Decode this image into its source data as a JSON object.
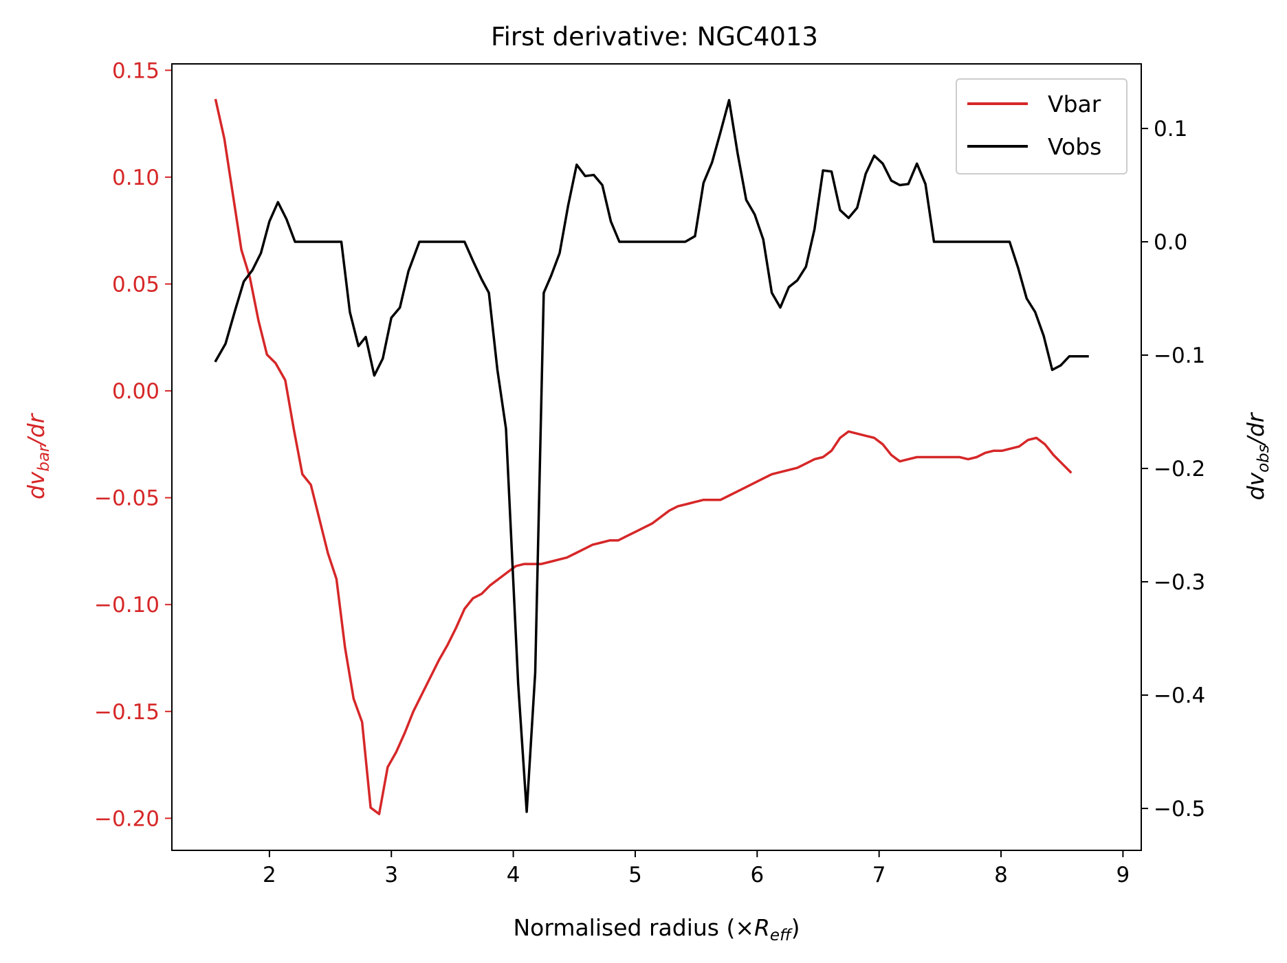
{
  "chart_data": {
    "type": "line",
    "title": "First derivative: NGC4013",
    "xlabel": "Normalised radius (×",
    "xlabel_symbol": "R",
    "xlabel_sub": "eff",
    "xlabel_close": ")",
    "ylabel_left": "dv",
    "ylabel_left_sub": "bar",
    "ylabel_left_tail": "/dr",
    "ylabel_right": "dv",
    "ylabel_right_sub": "obs",
    "ylabel_right_tail": "/dr",
    "xlim": [
      1.2,
      9.15
    ],
    "ylim_left": [
      -0.215,
      0.153
    ],
    "ylim_right": [
      -0.537,
      0.157
    ],
    "x_ticks": [
      2,
      3,
      4,
      5,
      6,
      7,
      8,
      9
    ],
    "x_tick_labels": [
      "2",
      "3",
      "4",
      "5",
      "6",
      "7",
      "8",
      "9"
    ],
    "y_left_ticks": [
      0.15,
      0.1,
      0.05,
      0.0,
      -0.05,
      -0.1,
      -0.15,
      -0.2
    ],
    "y_left_tick_labels": [
      "0.15",
      "0.10",
      "0.05",
      "0.00",
      "−0.05",
      "−0.10",
      "−0.15",
      "−0.20"
    ],
    "y_right_ticks": [
      0.1,
      0.0,
      -0.1,
      -0.2,
      -0.3,
      -0.4,
      -0.5
    ],
    "y_right_tick_labels": [
      "0.1",
      "0.0",
      "−0.1",
      "−0.2",
      "−0.3",
      "−0.4",
      "−0.5"
    ],
    "legend": {
      "placement": "top-right",
      "entries": [
        "Vbar",
        "Vobs"
      ]
    },
    "colors": {
      "vbar": "#d62728",
      "vobs": "#000000",
      "left_axis": "#d62728",
      "right_axis": "#000000"
    },
    "series": [
      {
        "name": "Vbar",
        "axis": "left",
        "color": "#d62728",
        "points": [
          [
            1.56,
            0.136
          ],
          [
            1.63,
            0.118
          ],
          [
            1.7,
            0.092
          ],
          [
            1.77,
            0.066
          ],
          [
            1.84,
            0.053
          ],
          [
            1.91,
            0.033
          ],
          [
            1.98,
            0.017
          ],
          [
            2.05,
            0.013
          ],
          [
            2.13,
            0.005
          ],
          [
            2.2,
            -0.018
          ],
          [
            2.27,
            -0.039
          ],
          [
            2.34,
            -0.044
          ],
          [
            2.41,
            -0.06
          ],
          [
            2.48,
            -0.076
          ],
          [
            2.55,
            -0.088
          ],
          [
            2.62,
            -0.12
          ],
          [
            2.69,
            -0.144
          ],
          [
            2.76,
            -0.155
          ],
          [
            2.83,
            -0.195
          ],
          [
            2.9,
            -0.198
          ],
          [
            2.97,
            -0.176
          ],
          [
            3.04,
            -0.169
          ],
          [
            3.11,
            -0.16
          ],
          [
            3.18,
            -0.15
          ],
          [
            3.25,
            -0.142
          ],
          [
            3.32,
            -0.134
          ],
          [
            3.39,
            -0.126
          ],
          [
            3.46,
            -0.119
          ],
          [
            3.53,
            -0.111
          ],
          [
            3.6,
            -0.102
          ],
          [
            3.67,
            -0.097
          ],
          [
            3.74,
            -0.095
          ],
          [
            3.81,
            -0.091
          ],
          [
            3.88,
            -0.088
          ],
          [
            3.95,
            -0.085
          ],
          [
            4.02,
            -0.082
          ],
          [
            4.09,
            -0.081
          ],
          [
            4.16,
            -0.081
          ],
          [
            4.23,
            -0.081
          ],
          [
            4.3,
            -0.08
          ],
          [
            4.37,
            -0.079
          ],
          [
            4.44,
            -0.078
          ],
          [
            4.51,
            -0.076
          ],
          [
            4.58,
            -0.074
          ],
          [
            4.65,
            -0.072
          ],
          [
            4.72,
            -0.071
          ],
          [
            4.79,
            -0.07
          ],
          [
            4.86,
            -0.07
          ],
          [
            4.93,
            -0.068
          ],
          [
            5.0,
            -0.066
          ],
          [
            5.07,
            -0.064
          ],
          [
            5.14,
            -0.062
          ],
          [
            5.21,
            -0.059
          ],
          [
            5.28,
            -0.056
          ],
          [
            5.35,
            -0.054
          ],
          [
            5.42,
            -0.053
          ],
          [
            5.49,
            -0.052
          ],
          [
            5.56,
            -0.051
          ],
          [
            5.63,
            -0.051
          ],
          [
            5.7,
            -0.051
          ],
          [
            5.77,
            -0.049
          ],
          [
            5.84,
            -0.047
          ],
          [
            5.91,
            -0.045
          ],
          [
            5.98,
            -0.043
          ],
          [
            6.05,
            -0.041
          ],
          [
            6.12,
            -0.039
          ],
          [
            6.19,
            -0.038
          ],
          [
            6.26,
            -0.037
          ],
          [
            6.33,
            -0.036
          ],
          [
            6.4,
            -0.034
          ],
          [
            6.47,
            -0.032
          ],
          [
            6.54,
            -0.031
          ],
          [
            6.61,
            -0.028
          ],
          [
            6.68,
            -0.022
          ],
          [
            6.75,
            -0.019
          ],
          [
            6.82,
            -0.02
          ],
          [
            6.89,
            -0.021
          ],
          [
            6.96,
            -0.022
          ],
          [
            7.03,
            -0.025
          ],
          [
            7.1,
            -0.03
          ],
          [
            7.17,
            -0.033
          ],
          [
            7.24,
            -0.032
          ],
          [
            7.31,
            -0.031
          ],
          [
            7.38,
            -0.031
          ],
          [
            7.45,
            -0.031
          ],
          [
            7.52,
            -0.031
          ],
          [
            7.59,
            -0.031
          ],
          [
            7.66,
            -0.031
          ],
          [
            7.73,
            -0.032
          ],
          [
            7.8,
            -0.031
          ],
          [
            7.87,
            -0.029
          ],
          [
            7.94,
            -0.028
          ],
          [
            8.01,
            -0.028
          ],
          [
            8.08,
            -0.027
          ],
          [
            8.15,
            -0.026
          ],
          [
            8.22,
            -0.023
          ],
          [
            8.29,
            -0.022
          ],
          [
            8.36,
            -0.025
          ],
          [
            8.43,
            -0.03
          ],
          [
            8.5,
            -0.034
          ],
          [
            8.57,
            -0.038
          ]
        ]
      },
      {
        "name": "Vobs",
        "axis": "right",
        "color": "#000000",
        "points": [
          [
            1.56,
            -0.105
          ],
          [
            1.64,
            -0.09
          ],
          [
            1.72,
            -0.06
          ],
          [
            1.79,
            -0.035
          ],
          [
            1.86,
            -0.025
          ],
          [
            1.93,
            -0.01
          ],
          [
            2.0,
            0.018
          ],
          [
            2.07,
            0.035
          ],
          [
            2.14,
            0.02
          ],
          [
            2.21,
            0.0
          ],
          [
            2.3,
            0.0
          ],
          [
            2.4,
            0.0
          ],
          [
            2.5,
            0.0
          ],
          [
            2.59,
            0.0
          ],
          [
            2.66,
            -0.062
          ],
          [
            2.73,
            -0.092
          ],
          [
            2.79,
            -0.084
          ],
          [
            2.86,
            -0.118
          ],
          [
            2.93,
            -0.103
          ],
          [
            3.0,
            -0.067
          ],
          [
            3.07,
            -0.058
          ],
          [
            3.14,
            -0.026
          ],
          [
            3.23,
            0.0
          ],
          [
            3.32,
            0.0
          ],
          [
            3.42,
            0.0
          ],
          [
            3.51,
            0.0
          ],
          [
            3.6,
            0.0
          ],
          [
            3.67,
            -0.017
          ],
          [
            3.74,
            -0.033
          ],
          [
            3.8,
            -0.045
          ],
          [
            3.87,
            -0.113
          ],
          [
            3.94,
            -0.165
          ],
          [
            4.04,
            -0.39
          ],
          [
            4.11,
            -0.503
          ],
          [
            4.18,
            -0.38
          ],
          [
            4.25,
            -0.045
          ],
          [
            4.31,
            -0.03
          ],
          [
            4.38,
            -0.01
          ],
          [
            4.45,
            0.032
          ],
          [
            4.52,
            0.068
          ],
          [
            4.59,
            0.058
          ],
          [
            4.66,
            0.059
          ],
          [
            4.73,
            0.05
          ],
          [
            4.8,
            0.018
          ],
          [
            4.87,
            0.0
          ],
          [
            4.96,
            0.0
          ],
          [
            5.05,
            0.0
          ],
          [
            5.14,
            0.0
          ],
          [
            5.23,
            0.0
          ],
          [
            5.32,
            0.0
          ],
          [
            5.41,
            0.0
          ],
          [
            5.49,
            0.005
          ],
          [
            5.56,
            0.052
          ],
          [
            5.63,
            0.07
          ],
          [
            5.7,
            0.097
          ],
          [
            5.77,
            0.125
          ],
          [
            5.84,
            0.078
          ],
          [
            5.91,
            0.037
          ],
          [
            5.98,
            0.024
          ],
          [
            6.05,
            0.002
          ],
          [
            6.12,
            -0.045
          ],
          [
            6.19,
            -0.058
          ],
          [
            6.26,
            -0.04
          ],
          [
            6.33,
            -0.034
          ],
          [
            6.4,
            -0.022
          ],
          [
            6.47,
            0.011
          ],
          [
            6.54,
            0.063
          ],
          [
            6.61,
            0.062
          ],
          [
            6.68,
            0.028
          ],
          [
            6.75,
            0.021
          ],
          [
            6.82,
            0.03
          ],
          [
            6.89,
            0.06
          ],
          [
            6.96,
            0.076
          ],
          [
            7.03,
            0.069
          ],
          [
            7.1,
            0.054
          ],
          [
            7.17,
            0.05
          ],
          [
            7.24,
            0.051
          ],
          [
            7.31,
            0.069
          ],
          [
            7.38,
            0.051
          ],
          [
            7.45,
            0.0
          ],
          [
            7.54,
            0.0
          ],
          [
            7.63,
            0.0
          ],
          [
            7.72,
            0.0
          ],
          [
            7.81,
            0.0
          ],
          [
            7.9,
            0.0
          ],
          [
            7.99,
            0.0
          ],
          [
            8.07,
            0.0
          ],
          [
            8.14,
            -0.023
          ],
          [
            8.21,
            -0.05
          ],
          [
            8.28,
            -0.062
          ],
          [
            8.35,
            -0.083
          ],
          [
            8.42,
            -0.113
          ],
          [
            8.49,
            -0.109
          ],
          [
            8.56,
            -0.101
          ],
          [
            8.63,
            -0.101
          ],
          [
            8.71,
            -0.101
          ]
        ]
      }
    ]
  }
}
